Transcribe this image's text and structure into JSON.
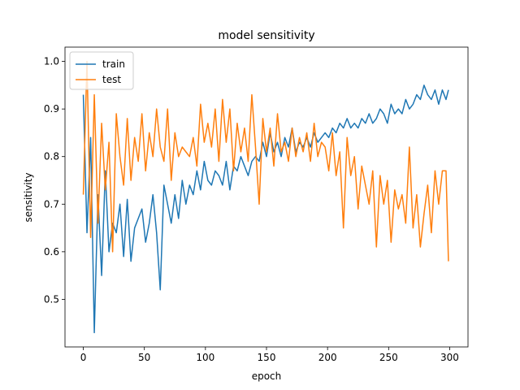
{
  "chart_data": {
    "type": "line",
    "title": "model sensitivity",
    "xlabel": "epoch",
    "ylabel": "sensitivity",
    "xlim": [
      -15,
      315
    ],
    "ylim": [
      0.4,
      1.03
    ],
    "xticks": [
      0,
      50,
      100,
      150,
      200,
      250,
      300
    ],
    "yticks": [
      0.5,
      0.6,
      0.7,
      0.8,
      0.9,
      1.0
    ],
    "xtick_labels": [
      "0",
      "50",
      "100",
      "150",
      "200",
      "250",
      "300"
    ],
    "ytick_labels": [
      "0.5",
      "0.6",
      "0.7",
      "0.8",
      "0.9",
      "1.0"
    ],
    "grid": false,
    "legend_position": "top-left",
    "series": [
      {
        "name": "train",
        "color": "#1f77b4",
        "x": [
          0,
          3,
          6,
          9,
          12,
          15,
          18,
          21,
          24,
          27,
          30,
          33,
          36,
          39,
          42,
          45,
          48,
          51,
          54,
          57,
          60,
          63,
          66,
          69,
          72,
          75,
          78,
          81,
          84,
          87,
          90,
          93,
          96,
          99,
          102,
          105,
          108,
          111,
          114,
          117,
          120,
          123,
          126,
          129,
          132,
          135,
          138,
          141,
          144,
          147,
          150,
          153,
          156,
          159,
          162,
          165,
          168,
          171,
          174,
          177,
          180,
          183,
          186,
          189,
          192,
          195,
          198,
          201,
          204,
          207,
          210,
          213,
          216,
          219,
          222,
          225,
          228,
          231,
          234,
          237,
          240,
          243,
          246,
          249,
          252,
          255,
          258,
          261,
          264,
          267,
          270,
          273,
          276,
          279,
          282,
          285,
          288,
          291,
          294,
          297,
          299
        ],
        "y": [
          0.93,
          0.64,
          0.84,
          0.43,
          0.72,
          0.55,
          0.77,
          0.6,
          0.66,
          0.64,
          0.7,
          0.59,
          0.71,
          0.58,
          0.65,
          0.67,
          0.69,
          0.62,
          0.66,
          0.72,
          0.64,
          0.52,
          0.74,
          0.7,
          0.66,
          0.72,
          0.67,
          0.75,
          0.7,
          0.74,
          0.72,
          0.77,
          0.73,
          0.79,
          0.75,
          0.74,
          0.77,
          0.76,
          0.74,
          0.79,
          0.73,
          0.78,
          0.77,
          0.8,
          0.78,
          0.76,
          0.79,
          0.8,
          0.79,
          0.83,
          0.8,
          0.85,
          0.81,
          0.83,
          0.8,
          0.84,
          0.82,
          0.86,
          0.81,
          0.83,
          0.82,
          0.84,
          0.82,
          0.85,
          0.83,
          0.84,
          0.85,
          0.84,
          0.86,
          0.85,
          0.87,
          0.86,
          0.88,
          0.86,
          0.87,
          0.86,
          0.88,
          0.87,
          0.89,
          0.87,
          0.88,
          0.9,
          0.89,
          0.87,
          0.91,
          0.89,
          0.9,
          0.89,
          0.92,
          0.9,
          0.91,
          0.93,
          0.92,
          0.95,
          0.93,
          0.92,
          0.94,
          0.91,
          0.94,
          0.92,
          0.94
        ]
      },
      {
        "name": "test",
        "color": "#ff7f0e",
        "x": [
          0,
          3,
          6,
          9,
          12,
          15,
          18,
          21,
          24,
          27,
          30,
          33,
          36,
          39,
          42,
          45,
          48,
          51,
          54,
          57,
          60,
          63,
          66,
          69,
          72,
          75,
          78,
          81,
          84,
          87,
          90,
          93,
          96,
          99,
          102,
          105,
          108,
          111,
          114,
          117,
          120,
          123,
          126,
          129,
          132,
          135,
          138,
          141,
          144,
          147,
          150,
          153,
          156,
          159,
          162,
          165,
          168,
          171,
          174,
          177,
          180,
          183,
          186,
          189,
          192,
          195,
          198,
          201,
          204,
          207,
          210,
          213,
          216,
          219,
          222,
          225,
          228,
          231,
          234,
          237,
          240,
          243,
          246,
          249,
          252,
          255,
          258,
          261,
          264,
          267,
          270,
          273,
          276,
          279,
          282,
          285,
          288,
          291,
          294,
          297,
          299
        ],
        "y": [
          0.72,
          1.0,
          0.63,
          0.93,
          0.66,
          0.87,
          0.73,
          0.83,
          0.6,
          0.89,
          0.8,
          0.74,
          0.88,
          0.75,
          0.84,
          0.79,
          0.89,
          0.77,
          0.85,
          0.8,
          0.9,
          0.82,
          0.79,
          0.9,
          0.75,
          0.85,
          0.8,
          0.82,
          0.81,
          0.8,
          0.84,
          0.78,
          0.91,
          0.83,
          0.87,
          0.82,
          0.9,
          0.79,
          0.92,
          0.83,
          0.9,
          0.77,
          0.87,
          0.81,
          0.86,
          0.79,
          0.93,
          0.82,
          0.7,
          0.88,
          0.81,
          0.86,
          0.78,
          0.89,
          0.81,
          0.83,
          0.79,
          0.86,
          0.8,
          0.84,
          0.81,
          0.85,
          0.79,
          0.87,
          0.8,
          0.83,
          0.82,
          0.77,
          0.85,
          0.76,
          0.81,
          0.65,
          0.84,
          0.76,
          0.8,
          0.69,
          0.78,
          0.74,
          0.7,
          0.77,
          0.61,
          0.76,
          0.7,
          0.75,
          0.62,
          0.73,
          0.69,
          0.72,
          0.66,
          0.82,
          0.65,
          0.72,
          0.61,
          0.68,
          0.74,
          0.64,
          0.77,
          0.7,
          0.77,
          0.77,
          0.58
        ]
      }
    ]
  }
}
